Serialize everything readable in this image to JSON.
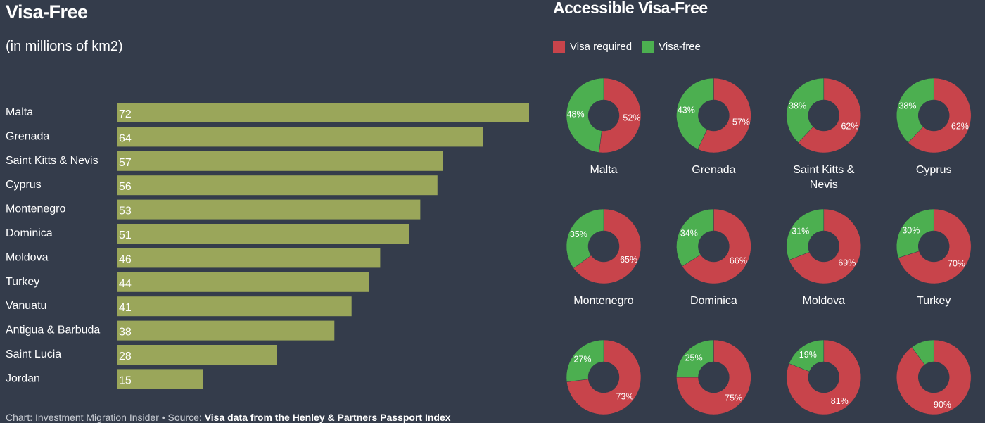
{
  "chart_data": [
    {
      "type": "bar",
      "title": "Visa-Free",
      "subtitle": "(in millions of km2)",
      "orientation": "horizontal",
      "categories": [
        "Malta",
        "Grenada",
        "Saint Kitts & Nevis",
        "Cyprus",
        "Montenegro",
        "Dominica",
        "Moldova",
        "Turkey",
        "Vanuatu",
        "Antigua & Barbuda",
        "Saint Lucia",
        "Jordan"
      ],
      "values": [
        72,
        64,
        57,
        56,
        53,
        51,
        46,
        44,
        41,
        38,
        28,
        15
      ],
      "bar_color": "#9aa65a",
      "grid": false
    },
    {
      "type": "pie",
      "title": "Accessible Visa-Free",
      "legend": [
        {
          "label": "Visa required",
          "color": "#c8444b"
        },
        {
          "label": "Visa-free",
          "color": "#4caf50"
        }
      ],
      "legend_position": "top-left",
      "donuts": [
        {
          "name": "Malta",
          "required": 52,
          "free": 48
        },
        {
          "name": "Grenada",
          "required": 57,
          "free": 43
        },
        {
          "name": "Saint Kitts & Nevis",
          "required": 62,
          "free": 38
        },
        {
          "name": "Cyprus",
          "required": 62,
          "free": 38
        },
        {
          "name": "Montenegro",
          "required": 65,
          "free": 35
        },
        {
          "name": "Dominica",
          "required": 66,
          "free": 34
        },
        {
          "name": "Moldova",
          "required": 69,
          "free": 31
        },
        {
          "name": "Turkey",
          "required": 70,
          "free": 30
        },
        {
          "name": "",
          "required": 73,
          "free": 27
        },
        {
          "name": "",
          "required": 75,
          "free": 25
        },
        {
          "name": "",
          "required": 81,
          "free": 19
        },
        {
          "name": "",
          "required": 90,
          "free": 10
        }
      ]
    }
  ],
  "footer": {
    "prefix": "Chart: Investment Migration Insider • Source: ",
    "source": "Visa data from the Henley & Partners Passport Index"
  }
}
